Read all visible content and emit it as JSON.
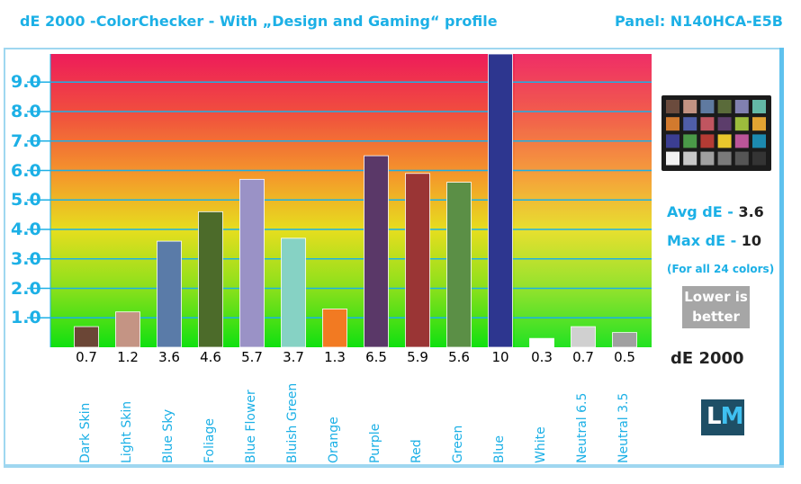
{
  "header": {
    "title": "dE 2000 -ColorChecker - With „Design and Gaming“ profile",
    "panel": "Panel: N140HCA-E5B"
  },
  "chart_data": {
    "type": "bar",
    "title": "dE 2000 -ColorChecker - With „Design and Gaming“ profile",
    "xlabel": "",
    "ylabel": "",
    "ylim": [
      0,
      10
    ],
    "y_ticks": [
      "1.0",
      "2.0",
      "3.0",
      "4.0",
      "5.0",
      "6.0",
      "7.0",
      "8.0",
      "9.0"
    ],
    "categories": [
      "Dark Skin",
      "Light Skin",
      "Blue Sky",
      "Foliage",
      "Blue Flower",
      "Bluish Green",
      "Orange",
      "Purple",
      "Red",
      "Green",
      "Blue",
      "White",
      "Neutral 6.5",
      "Neutral 3.5"
    ],
    "values": [
      0.7,
      1.2,
      3.6,
      4.6,
      5.7,
      3.7,
      1.3,
      6.5,
      5.9,
      5.6,
      10,
      0.3,
      0.7,
      0.5
    ],
    "value_labels": [
      "0.7",
      "1.2",
      "3.6",
      "4.6",
      "5.7",
      "3.7",
      "1.3",
      "6.5",
      "5.9",
      "5.6",
      "10",
      "0.3",
      "0.7",
      "0.5"
    ],
    "bar_colors": [
      "#6b4636",
      "#c49484",
      "#5a7ba8",
      "#4c6b2a",
      "#9a92c6",
      "#86d2c4",
      "#f27a22",
      "#5a3868",
      "#9a3535",
      "#5b8f46",
      "#2d368f",
      "#ffffff",
      "#d0d0d0",
      "#a0a0a0"
    ],
    "grid": true,
    "legend": "none"
  },
  "side": {
    "avg_label": "Avg dE - ",
    "avg_value": "3.6",
    "max_label": "Max dE - ",
    "max_value": "10",
    "note": "(For all 24 colors)",
    "lower_line1": "Lower is",
    "lower_line2": "better",
    "metric": "dE 2000",
    "logo_l": "L",
    "logo_m": "M"
  },
  "checker_colors": [
    "#6b4b3d",
    "#c39382",
    "#5f7aa0",
    "#5a6b3a",
    "#8180b0",
    "#63b8a6",
    "#d27a2e",
    "#4f5ea8",
    "#c05560",
    "#5c3d6b",
    "#9cbc3c",
    "#e2a332",
    "#3b3e92",
    "#4a9a48",
    "#b43b34",
    "#e8c62c",
    "#bb5598",
    "#1c8ab0",
    "#f2f2f2",
    "#c8c8c8",
    "#a0a0a0",
    "#7a7a7a",
    "#555555",
    "#343434"
  ]
}
